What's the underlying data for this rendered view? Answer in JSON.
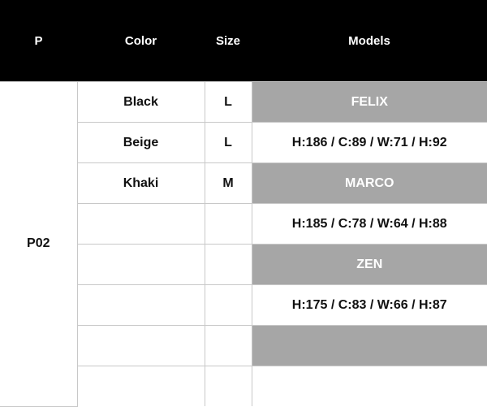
{
  "headers": [
    "P",
    "Color",
    "Size",
    "Models"
  ],
  "product": "P02",
  "rows": [
    {
      "color": "Black",
      "size": "L",
      "model": "FELIX",
      "gray": true
    },
    {
      "color": "Beige",
      "size": "L",
      "model": "H:186 / C:89 / W:71 / H:92",
      "gray": false
    },
    {
      "color": "Khaki",
      "size": "M",
      "model": "MARCO",
      "gray": true
    },
    {
      "color": "",
      "size": "",
      "model": "H:185 / C:78 / W:64 / H:88",
      "gray": false
    },
    {
      "color": "",
      "size": "",
      "model": "ZEN",
      "gray": true
    },
    {
      "color": "",
      "size": "",
      "model": "H:175 / C:83 / W:66 / H:87",
      "gray": false
    },
    {
      "color": "",
      "size": "",
      "model": "",
      "gray": true
    },
    {
      "color": "",
      "size": "",
      "model": "",
      "gray": false
    }
  ],
  "colors": {
    "header_bg": "#000000",
    "model_highlight": "#a6a6a6",
    "border": "#c8c8c8"
  }
}
